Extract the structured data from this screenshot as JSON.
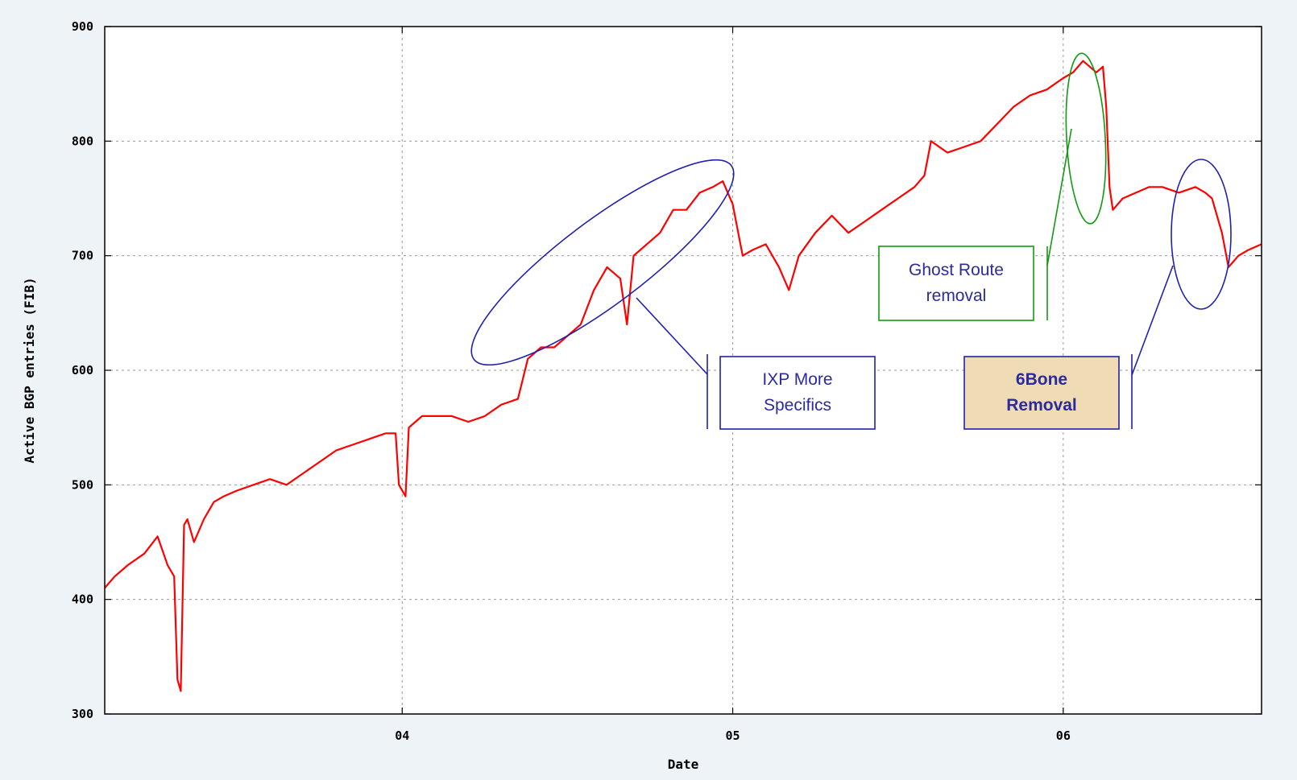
{
  "chart_data": {
    "type": "line",
    "title": "",
    "xlabel": "Date",
    "ylabel": "Active BGP entries (FIB)",
    "ylim": [
      300,
      900
    ],
    "xlim": [
      2003.1,
      2006.6
    ],
    "grid": true,
    "x_ticks": [
      {
        "value": 2004,
        "label": "04"
      },
      {
        "value": 2005,
        "label": "05"
      },
      {
        "value": 2006,
        "label": "06"
      }
    ],
    "y_ticks": [
      300,
      400,
      500,
      600,
      700,
      800,
      900
    ],
    "series_color": "#ff0000",
    "series": [
      {
        "name": "",
        "x": [
          2003.1,
          2003.13,
          2003.17,
          2003.22,
          2003.26,
          2003.29,
          2003.31,
          2003.32,
          2003.33,
          2003.34,
          2003.35,
          2003.37,
          2003.4,
          2003.43,
          2003.46,
          2003.5,
          2003.55,
          2003.6,
          2003.65,
          2003.7,
          2003.75,
          2003.8,
          2003.85,
          2003.9,
          2003.95,
          2003.98,
          2003.99,
          2004.01,
          2004.02,
          2004.04,
          2004.06,
          2004.1,
          2004.15,
          2004.2,
          2004.25,
          2004.3,
          2004.35,
          2004.38,
          2004.42,
          2004.46,
          2004.5,
          2004.54,
          2004.58,
          2004.62,
          2004.66,
          2004.68,
          2004.7,
          2004.74,
          2004.78,
          2004.82,
          2004.86,
          2004.9,
          2004.94,
          2004.97,
          2005.0,
          2005.03,
          2005.06,
          2005.1,
          2005.12,
          2005.14,
          2005.17,
          2005.2,
          2005.25,
          2005.3,
          2005.35,
          2005.4,
          2005.45,
          2005.5,
          2005.55,
          2005.58,
          2005.6,
          2005.65,
          2005.7,
          2005.75,
          2005.8,
          2005.85,
          2005.9,
          2005.95,
          2006.0,
          2006.03,
          2006.06,
          2006.08,
          2006.1,
          2006.12,
          2006.13,
          2006.14,
          2006.15,
          2006.18,
          2006.22,
          2006.26,
          2006.3,
          2006.35,
          2006.4,
          2006.43,
          2006.45,
          2006.48,
          2006.5,
          2006.53,
          2006.56,
          2006.6
        ],
        "y": [
          410,
          420,
          430,
          440,
          455,
          430,
          420,
          330,
          320,
          465,
          470,
          450,
          470,
          485,
          490,
          495,
          500,
          505,
          500,
          510,
          520,
          530,
          535,
          540,
          545,
          545,
          500,
          490,
          550,
          555,
          560,
          560,
          560,
          555,
          560,
          570,
          575,
          610,
          620,
          620,
          630,
          640,
          670,
          690,
          680,
          640,
          700,
          710,
          720,
          740,
          740,
          755,
          760,
          765,
          745,
          700,
          705,
          710,
          700,
          690,
          670,
          700,
          720,
          735,
          720,
          730,
          740,
          750,
          760,
          770,
          800,
          790,
          795,
          800,
          815,
          830,
          840,
          845,
          855,
          860,
          870,
          865,
          860,
          865,
          830,
          760,
          740,
          750,
          755,
          760,
          760,
          755,
          760,
          755,
          750,
          720,
          690,
          700,
          705,
          710
        ]
      }
    ],
    "annotations": [
      {
        "type": "text",
        "lines": [
          "IXP More",
          "Specifics"
        ],
        "color": "#2b2b9f"
      },
      {
        "type": "text",
        "lines": [
          "Ghost Route",
          "removal"
        ],
        "color": "#2b2b9f"
      },
      {
        "type": "text",
        "lines": [
          "6Bone",
          "Removal"
        ],
        "color": "#2b2b9f",
        "bold": true,
        "fill": "#f0dcb4"
      }
    ],
    "annotation_colors": {
      "blue": "#2020b0",
      "green": "#119911"
    }
  }
}
